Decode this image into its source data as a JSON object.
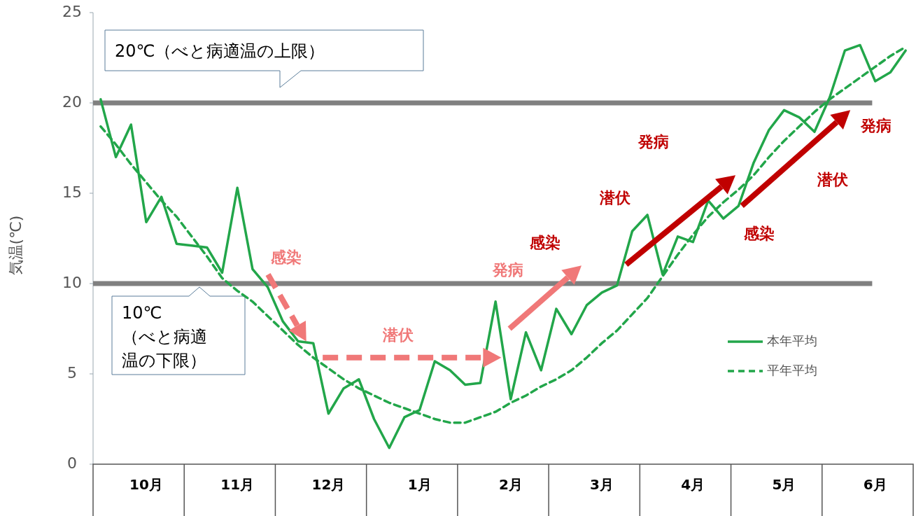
{
  "chart_data": {
    "type": "line",
    "ylabel": "気温(℃)",
    "categories": [
      null,
      null,
      null,
      "10月",
      null,
      null,
      null,
      null,
      null,
      "11月",
      null,
      null,
      null,
      null,
      null,
      "12月",
      null,
      null,
      null,
      null,
      null,
      "1月",
      null,
      null,
      null,
      null,
      null,
      "2月",
      null,
      null,
      null,
      null,
      null,
      "3月",
      null,
      null,
      null,
      null,
      null,
      "4月",
      null,
      null,
      null,
      null,
      null,
      "5月",
      null,
      null,
      null,
      null,
      null,
      "6月",
      null,
      null
    ],
    "ylim": [
      0,
      25
    ],
    "yticks": [
      0,
      5,
      10,
      15,
      20,
      25
    ],
    "legend": "right",
    "series": [
      {
        "name": "本年平均",
        "color": "#22a64a",
        "line_style": "solid",
        "values": [
          20.2,
          17.0,
          18.8,
          13.4,
          14.8,
          12.2,
          12.1,
          12.0,
          10.6,
          15.3,
          10.8,
          9.8,
          7.9,
          6.8,
          6.7,
          2.8,
          4.2,
          4.7,
          2.5,
          0.9,
          2.6,
          3.0,
          5.7,
          5.2,
          4.4,
          4.5,
          9.0,
          3.6,
          7.3,
          5.2,
          8.6,
          7.2,
          8.8,
          9.5,
          9.9,
          12.9,
          13.8,
          10.5,
          12.6,
          12.3,
          14.6,
          13.6,
          14.3,
          16.7,
          18.5,
          19.6,
          19.2,
          18.4,
          20.3,
          22.9,
          23.2,
          21.2,
          21.7,
          22.9
        ]
      },
      {
        "name": "平年平均",
        "color": "#22a64a",
        "line_style": "dashed",
        "values": [
          18.7,
          17.7,
          16.6,
          15.6,
          14.6,
          13.7,
          12.6,
          11.5,
          10.3,
          9.6,
          9.0,
          8.2,
          7.4,
          6.6,
          5.9,
          5.3,
          4.7,
          4.2,
          3.8,
          3.4,
          3.1,
          2.8,
          2.5,
          2.3,
          2.3,
          2.6,
          2.9,
          3.4,
          3.8,
          4.3,
          4.7,
          5.2,
          5.9,
          6.7,
          7.4,
          8.3,
          9.2,
          10.4,
          11.6,
          12.7,
          13.7,
          14.5,
          15.2,
          16.0,
          17.0,
          17.9,
          18.7,
          19.5,
          20.2,
          20.8,
          21.4,
          22.0,
          22.6,
          23.1
        ]
      }
    ],
    "ref_lines": [
      {
        "axis": "y",
        "value": 20,
        "label": "20℃（べと病適温の上限）",
        "color": "#808080"
      },
      {
        "axis": "y",
        "value": 10,
        "label": "10℃（べと病適温の下限）",
        "color": "#808080"
      }
    ],
    "annotations": [
      "感染",
      "潜伏",
      "発病",
      "感染",
      "潜伏",
      "発病",
      "感染",
      "潜伏",
      "発病"
    ]
  }
}
